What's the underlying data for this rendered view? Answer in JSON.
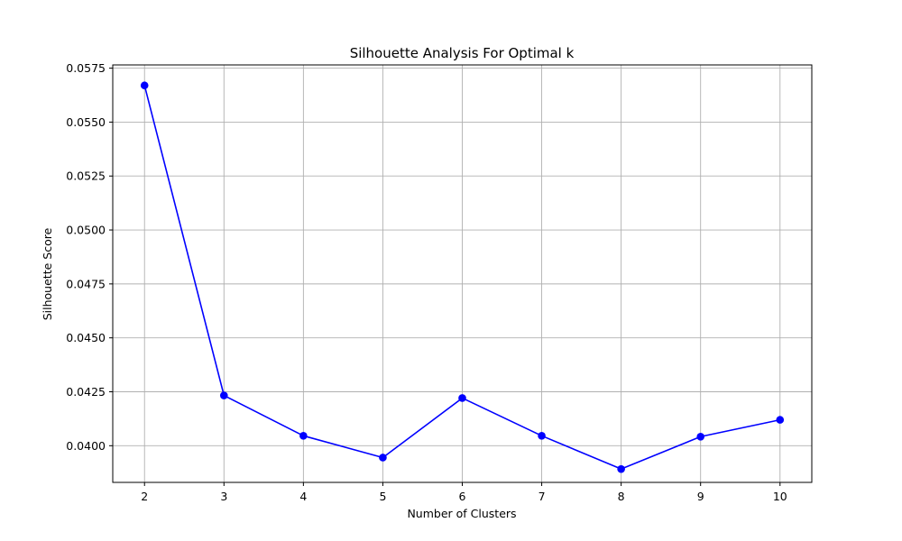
{
  "chart_data": {
    "type": "line",
    "title": "Silhouette Analysis For Optimal k",
    "xlabel": "Number of Clusters",
    "ylabel": "Silhouette Score",
    "x": [
      2,
      3,
      4,
      5,
      6,
      7,
      8,
      9,
      10
    ],
    "series": [
      {
        "values": [
          0.0567,
          0.04233,
          0.04046,
          0.03945,
          0.04221,
          0.04046,
          0.03892,
          0.04042,
          0.0412
        ],
        "color": "#0000ff",
        "marker": "circle"
      }
    ],
    "xlim": [
      1.6,
      10.4
    ],
    "ylim": [
      0.0383,
      0.05765
    ],
    "xticks": [
      2,
      3,
      4,
      5,
      6,
      7,
      8,
      9,
      10
    ],
    "xtick_labels": [
      "2",
      "3",
      "4",
      "5",
      "6",
      "7",
      "8",
      "9",
      "10"
    ],
    "yticks": [
      0.04,
      0.0425,
      0.045,
      0.0475,
      0.05,
      0.0525,
      0.055,
      0.0575
    ],
    "ytick_labels": [
      "0.0400",
      "0.0425",
      "0.0450",
      "0.0475",
      "0.0500",
      "0.0525",
      "0.0550",
      "0.0575"
    ],
    "grid": true,
    "grid_color": "#b0b0b0",
    "legend": false
  }
}
